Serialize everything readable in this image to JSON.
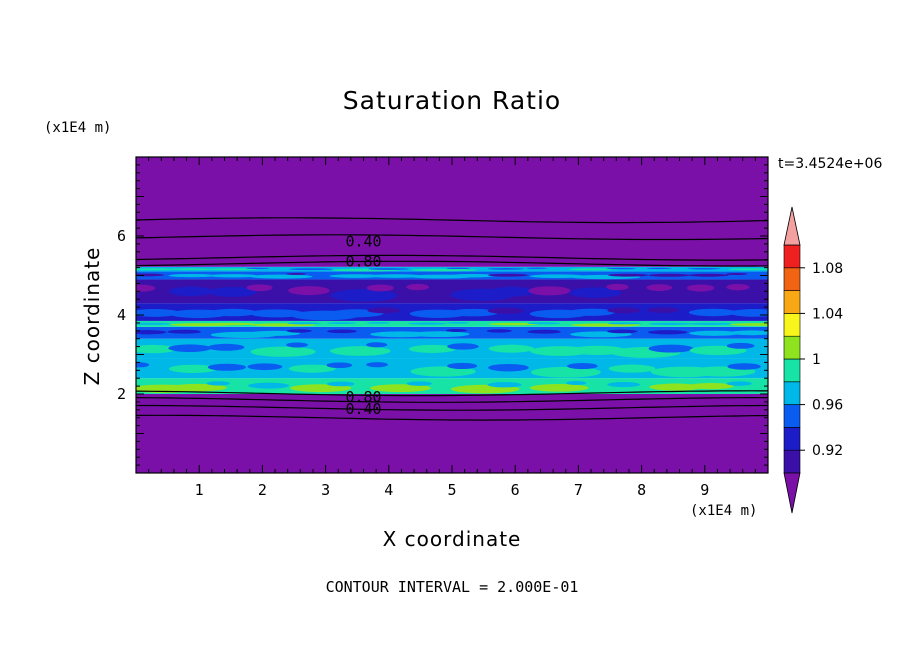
{
  "chart_data": {
    "type": "heatmap",
    "title": "Saturation Ratio",
    "xlabel": "X coordinate",
    "ylabel": "Z coordinate",
    "x_unit": "(x1E4 m)",
    "y_unit": "(x1E4 m)",
    "time_label": "t=3.4524e+06",
    "footer": "CONTOUR INTERVAL = 2.000E-01",
    "xlim": [
      0,
      10
    ],
    "ylim": [
      0,
      8
    ],
    "x_ticks": [
      1,
      2,
      3,
      4,
      5,
      6,
      7,
      8,
      9
    ],
    "y_ticks": [
      2,
      4,
      6
    ],
    "colorbar": {
      "levels": [
        0.9,
        0.92,
        0.94,
        0.96,
        0.98,
        1.0,
        1.02,
        1.04,
        1.06,
        1.08,
        1.1
      ],
      "tick_labels": [
        "0.92",
        "0.96",
        "1",
        "1.04",
        "1.08"
      ],
      "tick_values": [
        0.92,
        0.96,
        1.0,
        1.04,
        1.08
      ],
      "colors": [
        "#7a10a8",
        "#3b10a8",
        "#1c1cc8",
        "#0a5cf0",
        "#00b8e8",
        "#17e3a6",
        "#8fe31e",
        "#f7f51c",
        "#f7a814",
        "#f06414",
        "#ef2020",
        "#f2a0a0"
      ],
      "under_color": "#7a10a8",
      "over_color": "#f2a0a0"
    },
    "contour_labels": [
      {
        "text": "0.40",
        "x": 3.6,
        "z": 5.86
      },
      {
        "text": "0.80",
        "x": 3.6,
        "z": 5.36
      },
      {
        "text": "0.80",
        "x": 3.6,
        "z": 1.92
      },
      {
        "text": "0.40",
        "x": 3.6,
        "z": 1.62
      }
    ],
    "contour_lines_z": [
      6.4,
      5.97,
      5.45,
      5.3,
      2.02,
      1.85,
      1.65,
      1.4
    ],
    "bands": [
      {
        "z0": 0,
        "z1": 2.0,
        "value": 0.5
      },
      {
        "z0": 2.0,
        "z1": 2.4,
        "value": 0.99
      },
      {
        "z0": 2.4,
        "z1": 2.9,
        "value": 0.975
      },
      {
        "z0": 2.9,
        "z1": 3.4,
        "value": 0.965
      },
      {
        "z0": 3.4,
        "z1": 3.7,
        "value": 0.95
      },
      {
        "z0": 3.7,
        "z1": 3.85,
        "value": 0.985
      },
      {
        "z0": 3.85,
        "z1": 4.3,
        "value": 0.93
      },
      {
        "z0": 4.3,
        "z1": 4.9,
        "value": 0.91
      },
      {
        "z0": 4.9,
        "z1": 5.1,
        "value": 0.94
      },
      {
        "z0": 5.1,
        "z1": 5.22,
        "value": 0.975
      },
      {
        "z0": 5.22,
        "z1": 8.0,
        "value": 0.5
      }
    ]
  }
}
